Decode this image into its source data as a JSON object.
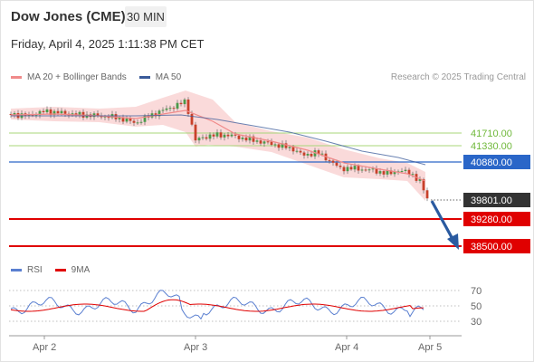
{
  "header": {
    "title": "Dow Jones (CME)",
    "timeframe": "30 MIN",
    "datetime": "Friday, April 4, 2025 1:11:38 PM CET"
  },
  "legend": [
    {
      "label": "MA 20 + Bollinger Bands",
      "color": "#f08a8a"
    },
    {
      "label": "MA 50",
      "color": "#3a5a9a"
    }
  ],
  "credit": "Research © 2025 Trading Central",
  "price_labels": [
    {
      "value": "41710.00",
      "kind": "resistance_light",
      "price": 41710
    },
    {
      "value": "41330.00",
      "kind": "resistance_light",
      "price": 41330
    },
    {
      "value": "40880.00",
      "kind": "pivot",
      "price": 40880
    },
    {
      "value": "39801.00",
      "kind": "last",
      "price": 39801
    },
    {
      "value": "39280.00",
      "kind": "support",
      "price": 39280
    },
    {
      "value": "38500.00",
      "kind": "support",
      "price": 38500
    }
  ],
  "rsi_legend": [
    {
      "label": "RSI",
      "color": "#5a7fd0"
    },
    {
      "label": "9MA",
      "color": "#e00000"
    }
  ],
  "rsi_levels": [
    "70",
    "50",
    "30"
  ],
  "x_labels": [
    "Apr 2",
    "Apr 3",
    "Apr 4",
    "Apr 5"
  ],
  "colors": {
    "pivot": "#2a66c8",
    "support": "#e00000",
    "resistance": "#8ec95a",
    "last": "#333333",
    "bollinger": "#f9d4d4",
    "ma20": "#f08a8a",
    "ma50": "#3a5a9a",
    "arrow": "#2a5aa0"
  }
}
